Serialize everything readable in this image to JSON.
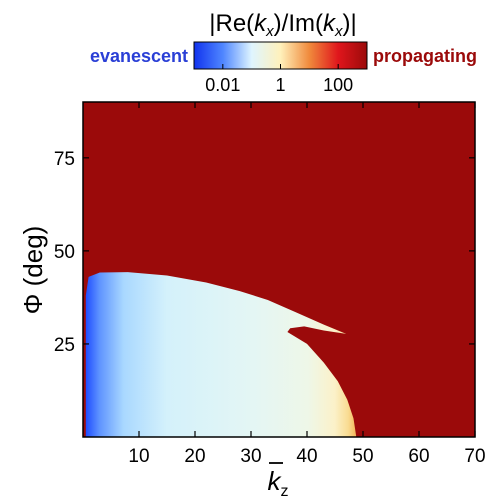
{
  "chart_data": {
    "type": "heatmap",
    "colorbar": {
      "title": "|Re(kx)/Im(kx)|",
      "scale": "log",
      "range": [
        0.001,
        1000
      ],
      "ticks": [
        0.01,
        1,
        100
      ],
      "tick_labels": [
        "0.01",
        "1",
        "100"
      ],
      "left_label": "evanescent",
      "right_label": "propagating",
      "left_label_color": "#2a3fd6",
      "right_label_color": "#9b0a0a",
      "colors": [
        "#1133ee",
        "#4f86ff",
        "#dff5ff",
        "#fff1bb",
        "#f08a3c",
        "#e0161c",
        "#9b0a0a"
      ]
    },
    "xlabel": "k_z",
    "ylabel": "Φ (deg)",
    "xlim": [
      0,
      70
    ],
    "ylim": [
      0,
      90
    ],
    "xticks": [
      10,
      20,
      30,
      40,
      50,
      60,
      70
    ],
    "yticks": [
      25,
      50,
      75
    ],
    "propagating_color": "#9b0a0a",
    "evanescent_region": {
      "upper_boundary": [
        [
          0.5,
          38
        ],
        [
          1,
          43
        ],
        [
          3,
          44.2
        ],
        [
          8,
          44.3
        ],
        [
          15,
          43.4
        ],
        [
          22,
          41.5
        ],
        [
          28,
          39.2
        ],
        [
          33,
          36.8
        ],
        [
          38,
          33.5
        ],
        [
          43,
          30.2
        ],
        [
          47,
          27.7
        ]
      ],
      "lower_boundary": [
        [
          47,
          27.7
        ],
        [
          43,
          28.6
        ],
        [
          39.5,
          29.7
        ],
        [
          37,
          29.2
        ],
        [
          36.5,
          28.2
        ],
        [
          40,
          25
        ],
        [
          43,
          20
        ],
        [
          45.5,
          15
        ],
        [
          47.2,
          10
        ],
        [
          48.3,
          5
        ],
        [
          48.8,
          0
        ]
      ]
    }
  }
}
